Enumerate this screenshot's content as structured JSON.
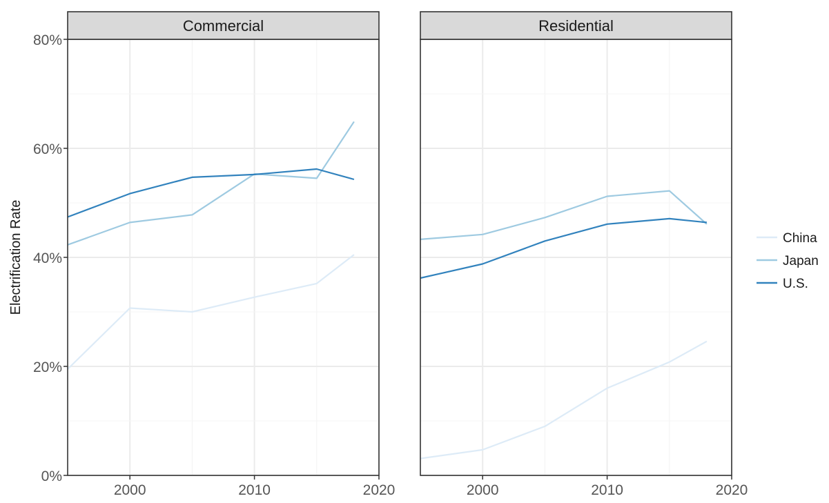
{
  "chart_data": {
    "type": "line",
    "ylabel": "Electrification Rate",
    "xlabel": "",
    "xlim": [
      1995,
      2020
    ],
    "ylim": [
      0,
      80
    ],
    "x_ticks": [
      2000,
      2010,
      2020
    ],
    "y_ticks": [
      0,
      20,
      40,
      60,
      80
    ],
    "y_tick_labels": [
      "0%",
      "20%",
      "40%",
      "60%",
      "80%"
    ],
    "grid": true,
    "legend_position": "right",
    "legend": [
      "China",
      "Japan",
      "U.S."
    ],
    "series_colors": {
      "China": "#ddebf7",
      "Japan": "#9ecae1",
      "U.S.": "#3182bd"
    },
    "panels": [
      {
        "title": "Commercial",
        "series": [
          {
            "name": "China",
            "x": [
              1995,
              2000,
              2005,
              2010,
              2015,
              2018
            ],
            "values": [
              19.5,
              30.7,
              30.0,
              32.7,
              35.2,
              40.5
            ]
          },
          {
            "name": "Japan",
            "x": [
              1995,
              2000,
              2005,
              2010,
              2015,
              2018
            ],
            "values": [
              42.3,
              46.4,
              47.8,
              55.3,
              54.5,
              64.9
            ]
          },
          {
            "name": "U.S.",
            "x": [
              1995,
              2000,
              2005,
              2010,
              2015,
              2018
            ],
            "values": [
              47.4,
              51.7,
              54.7,
              55.2,
              56.2,
              54.3
            ]
          }
        ]
      },
      {
        "title": "Residential",
        "series": [
          {
            "name": "China",
            "x": [
              1995,
              2000,
              2005,
              2010,
              2015,
              2018
            ],
            "values": [
              3.1,
              4.7,
              9.0,
              16.0,
              20.8,
              24.6
            ]
          },
          {
            "name": "Japan",
            "x": [
              1995,
              2000,
              2005,
              2010,
              2015,
              2018
            ],
            "values": [
              43.3,
              44.2,
              47.3,
              51.2,
              52.2,
              46.1
            ]
          },
          {
            "name": "U.S.",
            "x": [
              1995,
              2000,
              2005,
              2010,
              2015,
              2018
            ],
            "values": [
              36.2,
              38.8,
              43.0,
              46.1,
              47.1,
              46.4
            ]
          }
        ]
      }
    ]
  }
}
